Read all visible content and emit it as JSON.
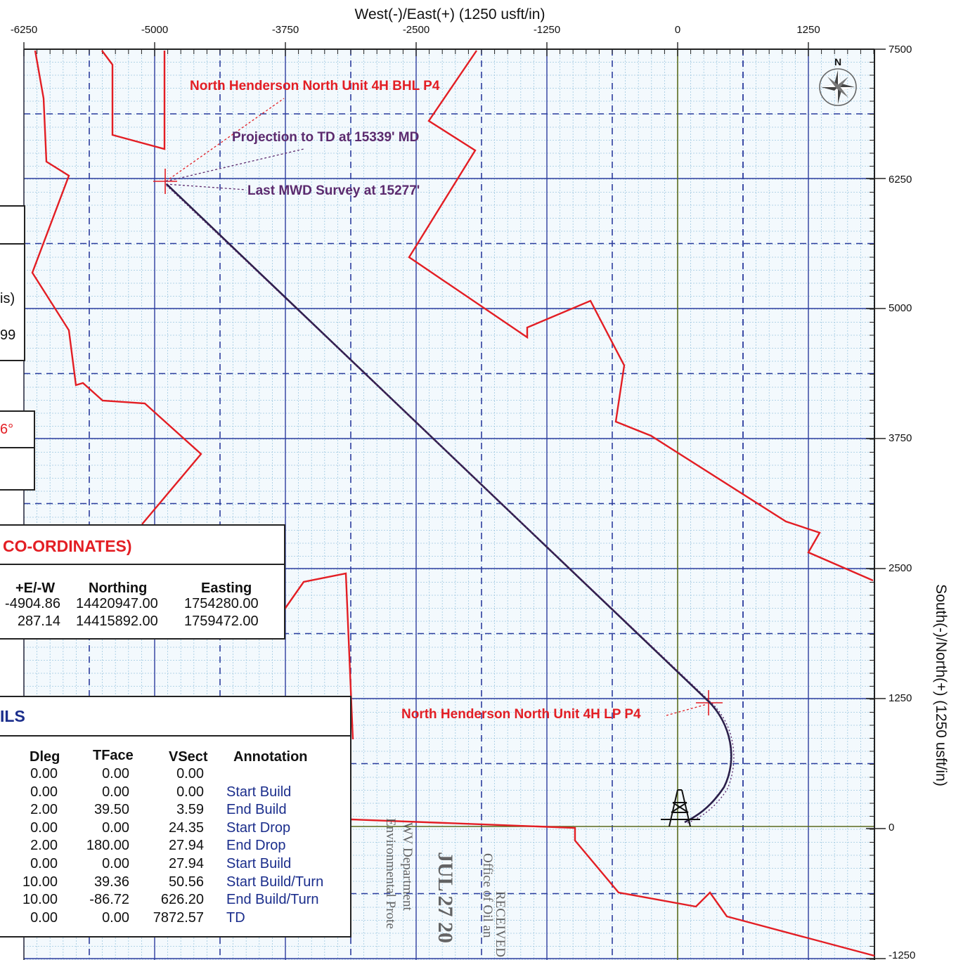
{
  "plot": {
    "x_axis_title": "West(-)/East(+) (1250 usft/in)",
    "y_axis_title": "South(-)/North(+) (1250 usft/in)",
    "x_ticks": [
      "-6250",
      "-5000",
      "-3750",
      "-2500",
      "-1250",
      "0",
      "1250"
    ],
    "y_ticks": [
      "7500",
      "6250",
      "5000",
      "3750",
      "2500",
      "1250",
      "0",
      "-1250"
    ],
    "compass_label": "N",
    "labels": {
      "bhl": "North Henderson North Unit 4H BHL P4",
      "projection": "Projection to TD at 15339' MD",
      "last_mwd": "Last MWD Survey at 15277'",
      "lp": "North Henderson North Unit 4H LP P4"
    },
    "colors": {
      "grid_major": "#2d3d9e",
      "grid_minor": "#9fc8e0",
      "boundary": "#e31e24",
      "wellpath": "#2b1f4a",
      "annotation_red": "#e31e24",
      "annotation_purple": "#5b2a6e",
      "zero_axis": "#5a6b1e",
      "background": "#f3f9fd"
    }
  },
  "left_fragments": [
    "is)",
    "99",
    "6°"
  ],
  "coordinates_panel": {
    "title": "CO-ORDINATES)",
    "headers": [
      "+E/-W",
      "Northing",
      "Easting"
    ],
    "rows": [
      [
        "-4904.86",
        "14420947.00",
        "1754280.00"
      ],
      [
        "287.14",
        "14415892.00",
        "1759472.00"
      ]
    ]
  },
  "details_panel": {
    "title": "ILS",
    "headers": [
      "Dleg",
      "TFace",
      "VSect",
      "Annotation"
    ],
    "rows": [
      [
        "0.00",
        "0.00",
        "0.00",
        ""
      ],
      [
        "0.00",
        "0.00",
        "0.00",
        "Start Build"
      ],
      [
        "2.00",
        "39.50",
        "3.59",
        "End Build"
      ],
      [
        "0.00",
        "0.00",
        "24.35",
        "Start Drop"
      ],
      [
        "2.00",
        "180.00",
        "27.94",
        "End Drop"
      ],
      [
        "0.00",
        "0.00",
        "27.94",
        "Start Build"
      ],
      [
        "10.00",
        "39.36",
        "50.56",
        "Start Build/Turn"
      ],
      [
        "10.00",
        "-86.72",
        "626.20",
        "End Build/Turn"
      ],
      [
        "0.00",
        "0.00",
        "7872.57",
        "TD"
      ]
    ]
  },
  "stamp": {
    "line1": "WV Department",
    "line2": "Environmental Prote",
    "line3": "JUL 27 20",
    "line4": "RECEIVED",
    "line5": "Office of Oil an"
  }
}
